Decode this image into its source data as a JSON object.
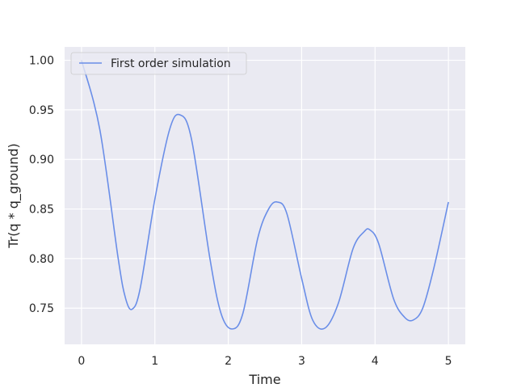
{
  "chart_data": {
    "type": "line",
    "title": "",
    "xlabel": "Time",
    "ylabel": "Tr(q * q_ground)",
    "xlim": [
      -0.23,
      5.23
    ],
    "ylim": [
      0.7135,
      1.0135
    ],
    "x_ticks": [
      0,
      1,
      2,
      3,
      4,
      5
    ],
    "x_tick_labels": [
      "0",
      "1",
      "2",
      "3",
      "4",
      "5"
    ],
    "y_ticks": [
      0.75,
      0.8,
      0.85,
      0.9,
      0.95,
      1.0
    ],
    "y_tick_labels": [
      "0.75",
      "0.80",
      "0.85",
      "0.90",
      "0.95",
      "1.00"
    ],
    "grid": true,
    "legend_position": "top-left",
    "series": [
      {
        "name": "First order simulation",
        "color": "#6a8ee8",
        "x": [
          0,
          0.25,
          0.5,
          0.6,
          0.69,
          0.8,
          1.0,
          1.2,
          1.34,
          1.5,
          1.75,
          1.9,
          2.05,
          2.2,
          2.4,
          2.55,
          2.67,
          2.8,
          3.0,
          3.15,
          3.32,
          3.5,
          3.7,
          3.85,
          3.93,
          4.05,
          4.25,
          4.4,
          4.52,
          4.65,
          4.8,
          5.0
        ],
        "y": [
          1.0,
          0.93,
          0.8,
          0.76,
          0.749,
          0.77,
          0.86,
          0.93,
          0.945,
          0.92,
          0.8,
          0.745,
          0.729,
          0.745,
          0.82,
          0.85,
          0.857,
          0.845,
          0.78,
          0.738,
          0.73,
          0.755,
          0.81,
          0.827,
          0.829,
          0.815,
          0.76,
          0.741,
          0.738,
          0.75,
          0.79,
          0.857
        ]
      }
    ]
  }
}
